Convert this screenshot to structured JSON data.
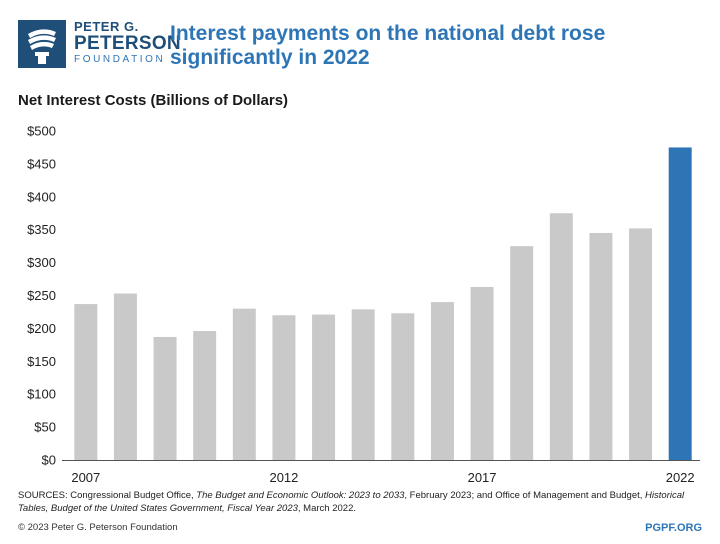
{
  "logo": {
    "line1": "PETER G.",
    "line2": "PETERSON",
    "line3": "FOUNDATION",
    "icon": "torch-icon",
    "color": "#1f4e79"
  },
  "title": "Interest payments on the national debt rose significantly in 2022",
  "subtitle": "Net Interest Costs (Billions of Dollars)",
  "chart_data": {
    "type": "bar",
    "categories": [
      "2007",
      "2008",
      "2009",
      "2010",
      "2011",
      "2012",
      "2013",
      "2014",
      "2015",
      "2016",
      "2017",
      "2018",
      "2019",
      "2020",
      "2021",
      "2022"
    ],
    "values": [
      237,
      253,
      187,
      196,
      230,
      220,
      221,
      229,
      223,
      240,
      263,
      325,
      375,
      345,
      352,
      475
    ],
    "x_tick_labels": [
      "2007",
      "2012",
      "2017",
      "2022"
    ],
    "y_ticks": [
      {
        "value": 0,
        "label": "$0"
      },
      {
        "value": 50,
        "label": "$50"
      },
      {
        "value": 100,
        "label": "$100"
      },
      {
        "value": 150,
        "label": "$150"
      },
      {
        "value": 200,
        "label": "$200"
      },
      {
        "value": 250,
        "label": "$250"
      },
      {
        "value": 300,
        "label": "$300"
      },
      {
        "value": 350,
        "label": "$350"
      },
      {
        "value": 400,
        "label": "$400"
      },
      {
        "value": 450,
        "label": "$450"
      },
      {
        "value": 500,
        "label": "$500"
      }
    ],
    "ylim": [
      0,
      500
    ],
    "grid": false,
    "bar_color": "#c9c9c9",
    "highlight_color": "#2e75b6",
    "highlight_index": 15
  },
  "footer": {
    "sources_prefix": "SOURCES: Congressional Budget Office, ",
    "sources_title1": "The Budget and Economic Outlook: 2023 to 2033",
    "sources_mid": ", February 2023; and Office of Management and Budget, ",
    "sources_title2": "Historical Tables, Budget of the United States Government, Fiscal Year 2023",
    "sources_suffix": ", March 2022.",
    "copyright": "© 2023 Peter G. Peterson Foundation",
    "site": "PGPF.ORG"
  }
}
